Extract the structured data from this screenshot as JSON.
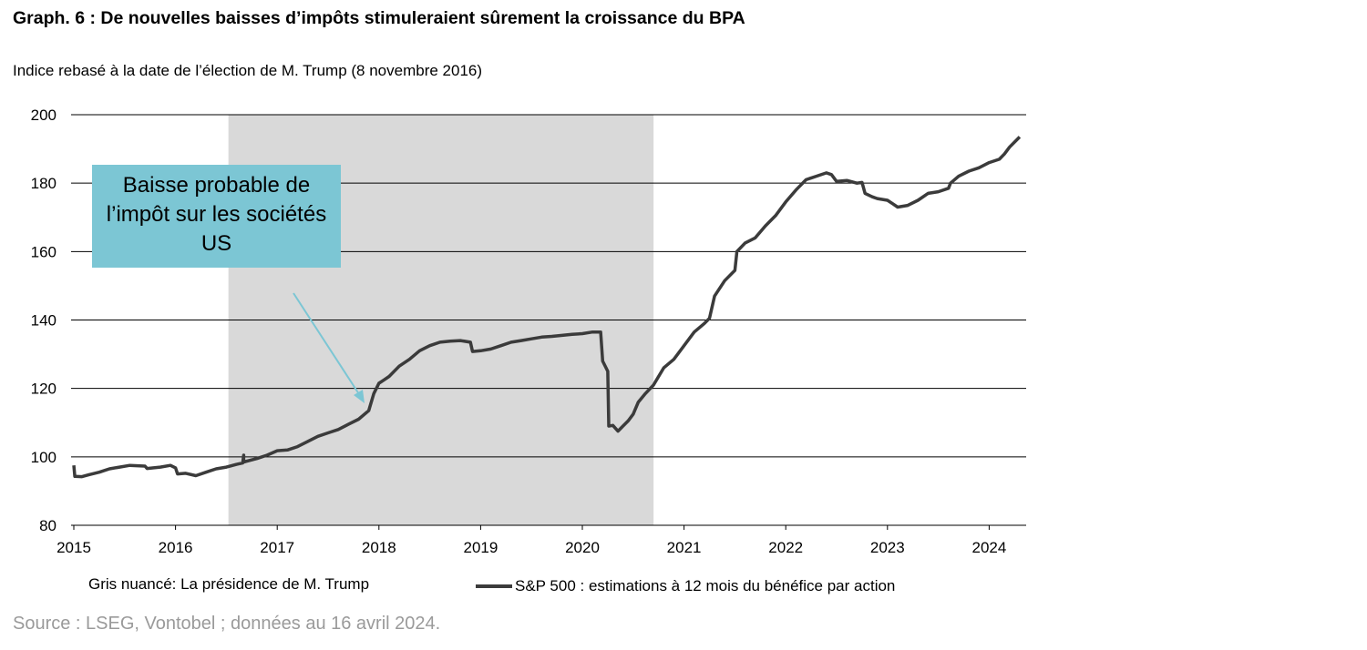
{
  "header": {
    "title": "Graph. 6 : De nouvelles baisses d’impôts stimuleraient sûrement la croissance du BPA",
    "subtitle": "Indice rebasé à la date de l’élection de M. Trump (8 novembre 2016)"
  },
  "legend": {
    "shaded_label": "Gris nuancé: La présidence de M. Trump",
    "series_label": "S&P 500 : estimations à 12 mois du bénéfice par action"
  },
  "callout": {
    "text": "Baisse probable de l’impôt sur les sociétés US"
  },
  "footer": {
    "source": "Source : LSEG, Vontobel ; données au 16 avril 2024."
  },
  "colors": {
    "series": "#3b3b3b",
    "shade": "#d9d9d9",
    "callout": "#7cc6d4",
    "arrow": "#7cc6d4"
  },
  "chart_data": {
    "type": "line",
    "xlim": [
      2015,
      2024.33
    ],
    "ylim": [
      80,
      200
    ],
    "xticks": [
      "2015",
      "2016",
      "2017",
      "2018",
      "2019",
      "2020",
      "2021",
      "2022",
      "2023",
      "2024"
    ],
    "yticks": [
      "80",
      "100",
      "120",
      "140",
      "160",
      "180",
      "200"
    ],
    "grid": "horizontal",
    "shaded_range": [
      2016.52,
      2020.7
    ],
    "series": [
      {
        "x": [
          2015.0,
          2015.01,
          2015.08,
          2015.15,
          2015.25,
          2015.35,
          2015.45,
          2015.55,
          2015.7,
          2015.72,
          2015.85,
          2015.95,
          2016.0,
          2016.02,
          2016.1,
          2016.2,
          2016.3,
          2016.4,
          2016.5,
          2016.6,
          2016.66,
          2016.67,
          2016.67,
          2016.8,
          2016.9,
          2017.0,
          2017.1,
          2017.2,
          2017.3,
          2017.4,
          2017.5,
          2017.6,
          2017.7,
          2017.8,
          2017.9,
          2017.95,
          2018.0,
          2018.05,
          2018.1,
          2018.2,
          2018.3,
          2018.4,
          2018.5,
          2018.6,
          2018.7,
          2018.8,
          2018.9,
          2018.92,
          2019.0,
          2019.1,
          2019.2,
          2019.3,
          2019.4,
          2019.5,
          2019.6,
          2019.7,
          2019.8,
          2019.9,
          2020.0,
          2020.1,
          2020.18,
          2020.2,
          2020.25,
          2020.26,
          2020.3,
          2020.35,
          2020.4,
          2020.45,
          2020.5,
          2020.55,
          2020.62,
          2020.7,
          2020.8,
          2020.9,
          2021.0,
          2021.1,
          2021.2,
          2021.25,
          2021.3,
          2021.4,
          2021.5,
          2021.52,
          2021.6,
          2021.7,
          2021.8,
          2021.9,
          2022.0,
          2022.1,
          2022.2,
          2022.3,
          2022.4,
          2022.45,
          2022.5,
          2022.6,
          2022.7,
          2022.75,
          2022.78,
          2022.85,
          2022.9,
          2023.0,
          2023.05,
          2023.1,
          2023.2,
          2023.3,
          2023.4,
          2023.5,
          2023.6,
          2023.62,
          2023.7,
          2023.8,
          2023.9,
          2024.0,
          2024.1,
          2024.15,
          2024.2,
          2024.3
        ],
        "values": [
          97.5,
          94.3,
          94.2,
          94.8,
          95.5,
          96.5,
          97.0,
          97.5,
          97.3,
          96.6,
          97.0,
          97.5,
          96.8,
          95.0,
          95.2,
          94.5,
          95.5,
          96.5,
          97.0,
          97.8,
          98.2,
          100.5,
          98.5,
          99.5,
          100.5,
          101.8,
          102.0,
          103.0,
          104.5,
          106.0,
          107.0,
          108.0,
          109.5,
          111.0,
          113.5,
          118.5,
          121.5,
          122.5,
          123.5,
          126.5,
          128.5,
          131.0,
          132.5,
          133.5,
          133.8,
          134.0,
          133.5,
          130.8,
          131.0,
          131.5,
          132.5,
          133.5,
          134.0,
          134.5,
          135.0,
          135.2,
          135.5,
          135.8,
          136.0,
          136.5,
          136.5,
          128.0,
          125.0,
          109.0,
          109.2,
          107.5,
          109.0,
          110.5,
          112.5,
          116.0,
          118.5,
          121.0,
          126.0,
          128.5,
          132.5,
          136.5,
          139.0,
          140.5,
          147.0,
          151.5,
          154.5,
          160.0,
          162.5,
          164.0,
          167.5,
          170.5,
          174.5,
          178.0,
          181.0,
          182.0,
          183.0,
          182.5,
          180.5,
          180.8,
          180.0,
          180.2,
          177.0,
          176.0,
          175.5,
          175.0,
          174.0,
          173.0,
          173.5,
          175.0,
          177.0,
          177.5,
          178.5,
          180.0,
          182.0,
          183.5,
          184.5,
          186.0,
          187.0,
          188.5,
          190.5,
          193.5
        ]
      }
    ]
  }
}
